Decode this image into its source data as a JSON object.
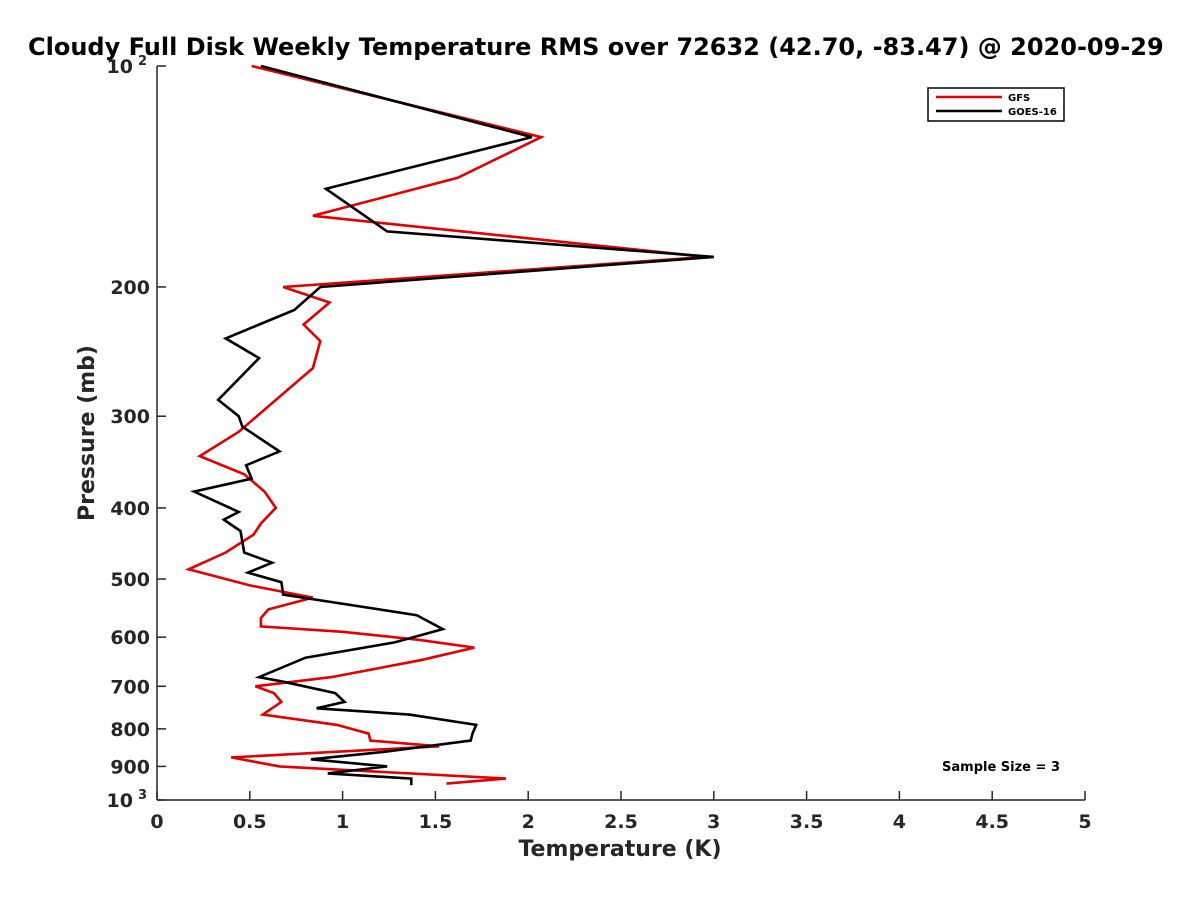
{
  "chart_data": {
    "type": "line",
    "title": "Cloudy Full Disk Weekly Temperature RMS over 72632 (42.70, -83.47) @ 2020-09-29",
    "xlabel": "Temperature (K)",
    "ylabel": "Pressure (mb)",
    "xlim": [
      0,
      5
    ],
    "ylim": [
      100,
      1000
    ],
    "y_scale": "log",
    "y_reversed": true,
    "grid": false,
    "legend_position": "top-right",
    "x_ticks": [
      "0",
      "0.5",
      "1",
      "1.5",
      "2",
      "2.5",
      "3",
      "3.5",
      "4",
      "4.5",
      "5"
    ],
    "y_ticks": [
      {
        "value": 100,
        "label": "10",
        "sup": "2"
      },
      {
        "value": 200,
        "label": "200",
        "sup": ""
      },
      {
        "value": 300,
        "label": "300",
        "sup": ""
      },
      {
        "value": 400,
        "label": "400",
        "sup": ""
      },
      {
        "value": 500,
        "label": "500",
        "sup": ""
      },
      {
        "value": 600,
        "label": "600",
        "sup": ""
      },
      {
        "value": 700,
        "label": "700",
        "sup": ""
      },
      {
        "value": 800,
        "label": "800",
        "sup": ""
      },
      {
        "value": 900,
        "label": "900",
        "sup": ""
      },
      {
        "value": 1000,
        "label": "10",
        "sup": "3"
      }
    ],
    "annotation": "Sample Size = 3",
    "series": [
      {
        "name": "GFS",
        "color": "#e00000",
        "points": [
          [
            0.51,
            100
          ],
          [
            2.07,
            125
          ],
          [
            1.62,
            142
          ],
          [
            0.84,
            160
          ],
          [
            2.96,
            182
          ],
          [
            0.68,
            200
          ],
          [
            0.93,
            210
          ],
          [
            0.79,
            225
          ],
          [
            0.88,
            237
          ],
          [
            0.84,
            258
          ],
          [
            0.44,
            315
          ],
          [
            0.23,
            340
          ],
          [
            0.47,
            360
          ],
          [
            0.58,
            380
          ],
          [
            0.64,
            400
          ],
          [
            0.56,
            420
          ],
          [
            0.52,
            435
          ],
          [
            0.37,
            460
          ],
          [
            0.17,
            485
          ],
          [
            0.5,
            510
          ],
          [
            0.84,
            530
          ],
          [
            0.6,
            550
          ],
          [
            0.56,
            565
          ],
          [
            0.56,
            580
          ],
          [
            1.0,
            590
          ],
          [
            1.41,
            605
          ],
          [
            1.71,
            620
          ],
          [
            1.42,
            645
          ],
          [
            0.94,
            680
          ],
          [
            0.53,
            700
          ],
          [
            0.63,
            715
          ],
          [
            0.67,
            735
          ],
          [
            0.57,
            765
          ],
          [
            0.97,
            790
          ],
          [
            1.14,
            812
          ],
          [
            1.15,
            830
          ],
          [
            1.52,
            845
          ],
          [
            0.4,
            875
          ],
          [
            0.66,
            900
          ],
          [
            1.88,
            935
          ],
          [
            1.56,
            950
          ]
        ]
      },
      {
        "name": "GOES-16",
        "color": "#000000",
        "points": [
          [
            0.56,
            100
          ],
          [
            2.02,
            125
          ],
          [
            0.91,
            147
          ],
          [
            1.24,
            168
          ],
          [
            3.0,
            182
          ],
          [
            0.88,
            200
          ],
          [
            0.74,
            215
          ],
          [
            0.37,
            235
          ],
          [
            0.55,
            250
          ],
          [
            0.33,
            285
          ],
          [
            0.44,
            300
          ],
          [
            0.46,
            310
          ],
          [
            0.66,
            335
          ],
          [
            0.48,
            350
          ],
          [
            0.51,
            365
          ],
          [
            0.2,
            380
          ],
          [
            0.44,
            405
          ],
          [
            0.36,
            415
          ],
          [
            0.45,
            430
          ],
          [
            0.47,
            460
          ],
          [
            0.62,
            475
          ],
          [
            0.49,
            490
          ],
          [
            0.67,
            505
          ],
          [
            0.68,
            525
          ],
          [
            1.4,
            560
          ],
          [
            1.54,
            585
          ],
          [
            1.28,
            610
          ],
          [
            0.8,
            640
          ],
          [
            0.55,
            680
          ],
          [
            0.68,
            690
          ],
          [
            0.96,
            715
          ],
          [
            1.01,
            735
          ],
          [
            0.86,
            750
          ],
          [
            1.36,
            765
          ],
          [
            1.72,
            790
          ],
          [
            1.7,
            812
          ],
          [
            1.69,
            830
          ],
          [
            1.22,
            860
          ],
          [
            0.83,
            880
          ],
          [
            1.24,
            900
          ],
          [
            0.92,
            920
          ],
          [
            1.37,
            935
          ],
          [
            1.37,
            955
          ]
        ]
      }
    ]
  }
}
